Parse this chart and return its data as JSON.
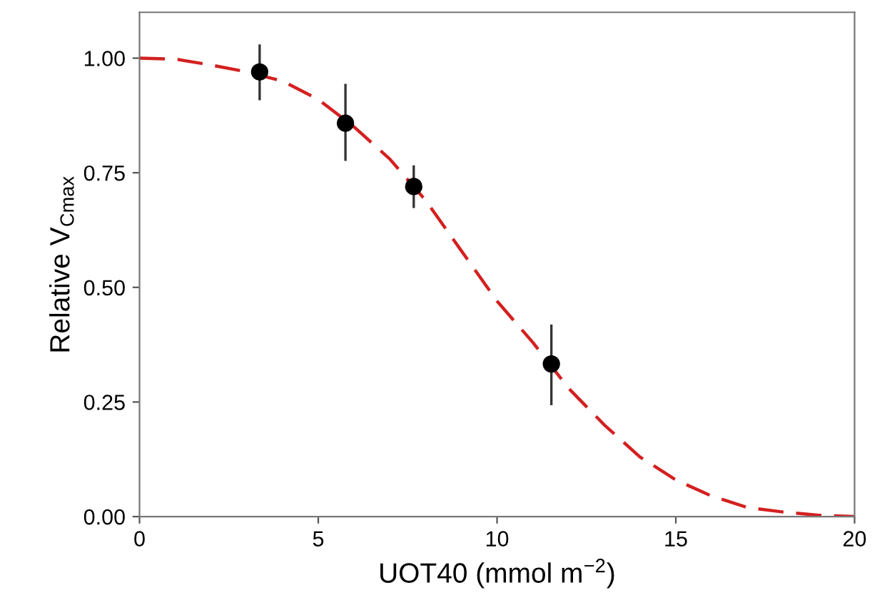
{
  "chart_data": {
    "type": "scatter",
    "xlabel": "UOT40 (mmol m$^{−2}$)",
    "ylabel": "Relative V$_{Cmax}$",
    "xlim": [
      0,
      20
    ],
    "ylim": [
      0,
      1.1
    ],
    "xticks": [
      0,
      5,
      10,
      15,
      20
    ],
    "yticks": [
      {
        "value": 0,
        "label": "0.00"
      },
      {
        "value": 0.25,
        "label": "0.25"
      },
      {
        "value": 0.5,
        "label": "0.50"
      },
      {
        "value": 0.75,
        "label": "0.75"
      },
      {
        "value": 1,
        "label": "1.00"
      }
    ],
    "grid": false,
    "series": [
      {
        "type": "line",
        "color": "#d42020",
        "line_style": "dashed",
        "marker": "none",
        "x": [
          0,
          1,
          2,
          3,
          4,
          5,
          6,
          7,
          8,
          9,
          10,
          11,
          12,
          13,
          14,
          15,
          16,
          17,
          18,
          19,
          20
        ],
        "values": [
          1.0,
          0.998,
          0.985,
          0.97,
          0.95,
          0.91,
          0.85,
          0.78,
          0.69,
          0.58,
          0.47,
          0.38,
          0.28,
          0.2,
          0.13,
          0.08,
          0.045,
          0.02,
          0.01,
          0.003,
          0.0
        ]
      },
      {
        "color": "#000000",
        "marker": "circle",
        "x": [
          3.36,
          5.76,
          7.67,
          11.52
        ],
        "values": [
          0.97,
          0.858,
          0.72,
          0.333
        ],
        "errors": [
          [
            0.908,
            1.03
          ],
          [
            0.776,
            0.944
          ],
          [
            0.673,
            0.766
          ],
          [
            0.243,
            0.419
          ]
        ]
      }
    ]
  }
}
